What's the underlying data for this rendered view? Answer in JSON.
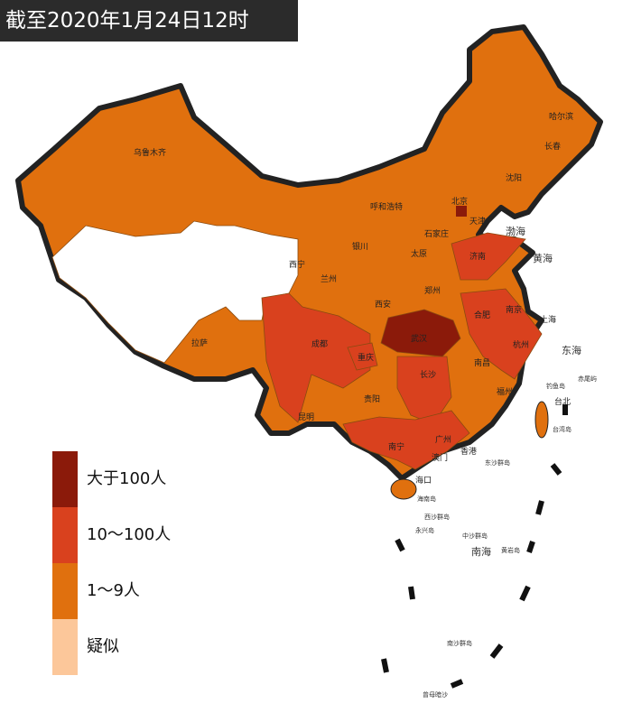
{
  "header": {
    "title": "截至2020年1月24日12时"
  },
  "legend": {
    "items": [
      {
        "label": "大于100人",
        "color": "#8b1a0a"
      },
      {
        "label": "10～100人",
        "color": "#d9411e"
      },
      {
        "label": "1～9人",
        "color": "#e0700e"
      },
      {
        "label": "疑似",
        "color": "#fcc79a"
      }
    ]
  },
  "map": {
    "cities": [
      "乌鲁木齐",
      "拉萨",
      "西宁",
      "兰州",
      "银川",
      "呼和浩特",
      "北京",
      "天津",
      "石家庄",
      "太原",
      "济南",
      "郑州",
      "西安",
      "成都",
      "重庆",
      "贵阳",
      "昆明",
      "南宁",
      "广州",
      "海口",
      "长沙",
      "武汉",
      "南昌",
      "福州",
      "杭州",
      "上海",
      "南京",
      "合肥",
      "沈阳",
      "长春",
      "哈尔滨",
      "台北",
      "香港",
      "澳门"
    ],
    "seas": [
      "渤海",
      "黄海",
      "东海",
      "南海"
    ],
    "islands": [
      "台湾岛",
      "海南岛",
      "钓鱼岛",
      "赤尾屿",
      "东沙群岛",
      "西沙群岛",
      "永兴岛",
      "中沙群岛",
      "黄岩岛",
      "南沙群岛",
      "曾母暗沙"
    ]
  }
}
